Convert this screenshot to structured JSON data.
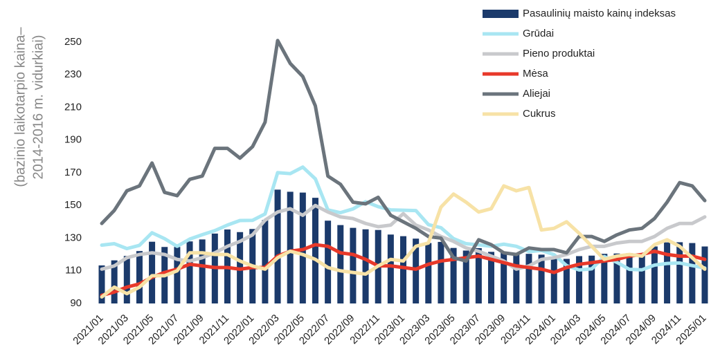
{
  "chart_data": {
    "type": "bar_line",
    "ylabel": [
      "(bazinio laikotarpio kaina–",
      "2014-2016 m. vidurkiai)"
    ],
    "categories": [
      "2021/01",
      null,
      "2021/03",
      null,
      "2021/05",
      null,
      "2021/07",
      null,
      "2021/09",
      null,
      "2021/11",
      null,
      "2022/01",
      null,
      "2022/03",
      null,
      "2022/05",
      null,
      "2022/07",
      null,
      "2022/09",
      null,
      "2022/11",
      null,
      "2023/01",
      null,
      "2023/03",
      null,
      "2023/05",
      null,
      "2023/07",
      null,
      "2023/09",
      null,
      "2023/11",
      null,
      "2024/01",
      null,
      "2024/03",
      null,
      "2024/05",
      null,
      "2024/07",
      null,
      "2024/09",
      null,
      "2024/11",
      null,
      "2025/01"
    ],
    "ylim": [
      90,
      250
    ],
    "yticks": [
      90,
      110,
      130,
      150,
      170,
      190,
      210,
      230,
      250
    ],
    "series": [
      {
        "name": "Pasaulinių maisto kainų indeksas",
        "type": "bar",
        "color": "#1b3a6b",
        "values": [
          113.3,
          116.4,
          119.1,
          122.1,
          127.8,
          124.6,
          124.6,
          128.0,
          129.2,
          132.8,
          135.3,
          133.7,
          135.6,
          141.1,
          159.7,
          158.4,
          157.9,
          154.7,
          140.7,
          138.0,
          136.3,
          135.4,
          135.0,
          132.2,
          131.2,
          129.7,
          127.0,
          127.7,
          124.0,
          122.4,
          123.9,
          121.6,
          121.5,
          120.5,
          120.4,
          119.9,
          118.3,
          117.3,
          119.0,
          119.3,
          120.4,
          120.6,
          120.8,
          120.7,
          124.9,
          127.4,
          127.5,
          127.0,
          124.9
        ]
      },
      {
        "name": "Grūdai",
        "type": "line",
        "color": "#a8e6f2",
        "values": [
          125.7,
          126.6,
          123.6,
          125.6,
          133.3,
          129.7,
          125.0,
          129.4,
          132.1,
          134.6,
          138.0,
          140.8,
          140.9,
          144.8,
          170.1,
          169.5,
          173.5,
          166.3,
          147.3,
          145.6,
          147.9,
          152.3,
          149.3,
          147.3,
          147.1,
          146.9,
          138.3,
          136.4,
          129.7,
          126.6,
          125.9,
          125.0,
          126.3,
          125.0,
          121.8,
          122.5,
          119.9,
          113.2,
          110.5,
          111.2,
          118.7,
          115.2,
          110.9,
          110.6,
          113.5,
          114.5,
          114.8,
          113.2,
          111.7
        ]
      },
      {
        "name": "Pieno produktai",
        "type": "line",
        "color": "#c8c9cc",
        "values": [
          111,
          113,
          118,
          120,
          121,
          120,
          117,
          116,
          118,
          121,
          125,
          128,
          132,
          141,
          146,
          148,
          144,
          150,
          146,
          143,
          142,
          139,
          137,
          138,
          145,
          138,
          135,
          131,
          128,
          124,
          122,
          119,
          116,
          111,
          113,
          117,
          118,
          120,
          123,
          125,
          125,
          127,
          128,
          128,
          131,
          136,
          139,
          139,
          143
        ]
      },
      {
        "name": "Mėsa",
        "type": "line",
        "color": "#e8392a",
        "values": [
          95,
          97,
          100,
          102,
          106,
          109,
          111,
          114,
          113,
          112,
          112,
          111,
          112,
          112,
          119,
          122,
          123,
          126,
          125,
          121,
          120,
          117,
          113,
          113,
          112,
          111,
          114,
          116,
          117,
          118,
          119,
          117,
          115,
          113,
          112,
          111,
          109,
          112,
          114,
          115,
          116,
          117,
          119,
          120,
          122,
          120,
          119,
          119,
          117
        ]
      },
      {
        "name": "Aliejai",
        "type": "line",
        "color": "#6b747c",
        "values": [
          139,
          147,
          159,
          162,
          176,
          158,
          156,
          166,
          168,
          185,
          185,
          179,
          186,
          201,
          251,
          237,
          229,
          211,
          168,
          163,
          152,
          151,
          155,
          144,
          140,
          136,
          131,
          130,
          118,
          116,
          129,
          126,
          121,
          120,
          124,
          123,
          123,
          121,
          131,
          131,
          128,
          132,
          135,
          136,
          142,
          152,
          164,
          162,
          153
        ]
      },
      {
        "name": "Cukrus",
        "type": "line",
        "color": "#f7e2a6",
        "values": [
          94,
          100,
          96,
          100,
          107,
          107,
          110,
          121,
          121,
          120,
          120,
          116,
          113,
          111,
          118,
          122,
          120,
          117,
          112,
          110,
          109,
          108,
          113,
          117,
          116,
          125,
          127,
          149,
          157,
          152,
          146,
          148,
          162,
          159,
          161,
          135,
          136,
          140,
          133,
          125,
          117,
          119,
          120,
          119,
          126,
          129,
          125,
          118,
          111
        ]
      }
    ]
  }
}
